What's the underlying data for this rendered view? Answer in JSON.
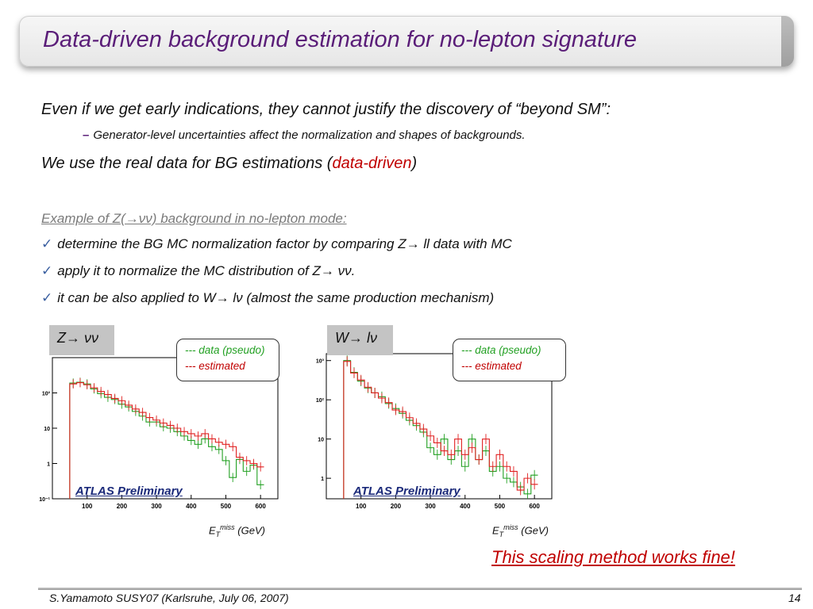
{
  "slide": {
    "title": "Data-driven background estimation for no-lepton signature",
    "bullet1": "Even if we get early indications,  they cannot justify the discovery of “beyond SM”:",
    "sub_bullet_marker": "–",
    "sub_bullet": "Generator-level uncertainties affect the normalization and shapes of backgrounds.",
    "bullet2_pre": "We use the real data for BG estimations (",
    "bullet2_red": "data-driven",
    "bullet2_post": ")",
    "example_heading": "Example of Z(→νν) background in no-lepton mode:",
    "check_mark": "✓",
    "checks": [
      "determine the BG MC normalization factor by comparing Z→ ll data with MC",
      "apply it to normalize the MC distribution of Z→ νν.",
      "it can be also applied to W→ lν (almost the same production mechanism)"
    ],
    "conclusion": "This scaling method works fine!",
    "footer_left": "S.Yamamoto    SUSY07 (Karlsruhe, July 06, 2007)",
    "footer_page": "14"
  },
  "colors": {
    "title": "#5a1d78",
    "data_series": "#22a022",
    "estimated_series": "#e02020",
    "highlight": "#c00000"
  },
  "chart_data": [
    {
      "type": "line",
      "panel_label": "Z→ νν",
      "overlay_label": "ATLAS Preliminary",
      "xlabel_main": "E",
      "xlabel_sub": "T",
      "xlabel_sup": "miss",
      "xlabel_unit": " (GeV)",
      "xlim": [
        0,
        650
      ],
      "ylim": [
        0.1,
        1000
      ],
      "yscale": "log",
      "x_ticks": [
        100,
        200,
        300,
        400,
        500,
        600
      ],
      "y_ticks": [
        {
          "v": 0.1,
          "label": "10⁻¹"
        },
        {
          "v": 1,
          "label": "1"
        },
        {
          "v": 10,
          "label": "10"
        },
        {
          "v": 100,
          "label": "10²"
        }
      ],
      "bin_width": 20,
      "bin_start": 50,
      "series": [
        {
          "name": "--- data (pseudo)",
          "color": "#22a022",
          "values": [
            190,
            200,
            180,
            130,
            95,
            75,
            65,
            48,
            40,
            30,
            22,
            15,
            15,
            11,
            10,
            8,
            6,
            4.5,
            3.5,
            5,
            3,
            2.5,
            1.2,
            0.4,
            1.3,
            0.6,
            0.9,
            0.25
          ]
        },
        {
          "name": "--- estimated",
          "color": "#e02020",
          "values": [
            180,
            195,
            170,
            140,
            110,
            90,
            70,
            60,
            45,
            35,
            28,
            20,
            17,
            14,
            12,
            10,
            8,
            7,
            6,
            7,
            5,
            4,
            3.5,
            3,
            1.5,
            1.2,
            1.0,
            0.8
          ]
        }
      ],
      "legend": [
        "--- data (pseudo)",
        "--- estimated"
      ]
    },
    {
      "type": "line",
      "panel_label": "W→ lν",
      "overlay_label": "ATLAS Preliminary",
      "xlabel_main": "E",
      "xlabel_sub": "T",
      "xlabel_sup": "miss",
      "xlabel_unit": " (GeV)",
      "xlim": [
        0,
        650
      ],
      "ylim": [
        0.3,
        1500
      ],
      "yscale": "log",
      "x_ticks": [
        100,
        200,
        300,
        400,
        500,
        600
      ],
      "y_ticks": [
        {
          "v": 1,
          "label": "1"
        },
        {
          "v": 10,
          "label": "10"
        },
        {
          "v": 100,
          "label": "10²"
        },
        {
          "v": 1000,
          "label": "10³"
        }
      ],
      "bin_width": 20,
      "bin_start": 50,
      "series": [
        {
          "name": "--- data (pseudo)",
          "color": "#22a022",
          "values": [
            1000,
            500,
            300,
            200,
            150,
            120,
            80,
            60,
            45,
            30,
            22,
            15,
            6,
            4,
            10,
            3,
            5,
            2,
            10,
            3,
            5,
            1.5,
            2,
            1,
            0.8,
            0.6,
            0.4,
            1.2
          ]
        },
        {
          "name": "--- estimated",
          "color": "#e02020",
          "values": [
            950,
            480,
            320,
            210,
            150,
            110,
            85,
            55,
            50,
            35,
            25,
            18,
            12,
            8,
            5,
            4,
            10,
            4,
            6,
            3,
            10,
            2,
            4,
            2,
            1.5,
            0.5,
            1,
            0.7
          ]
        }
      ],
      "legend": [
        "--- data (pseudo)",
        "--- estimated"
      ]
    }
  ]
}
